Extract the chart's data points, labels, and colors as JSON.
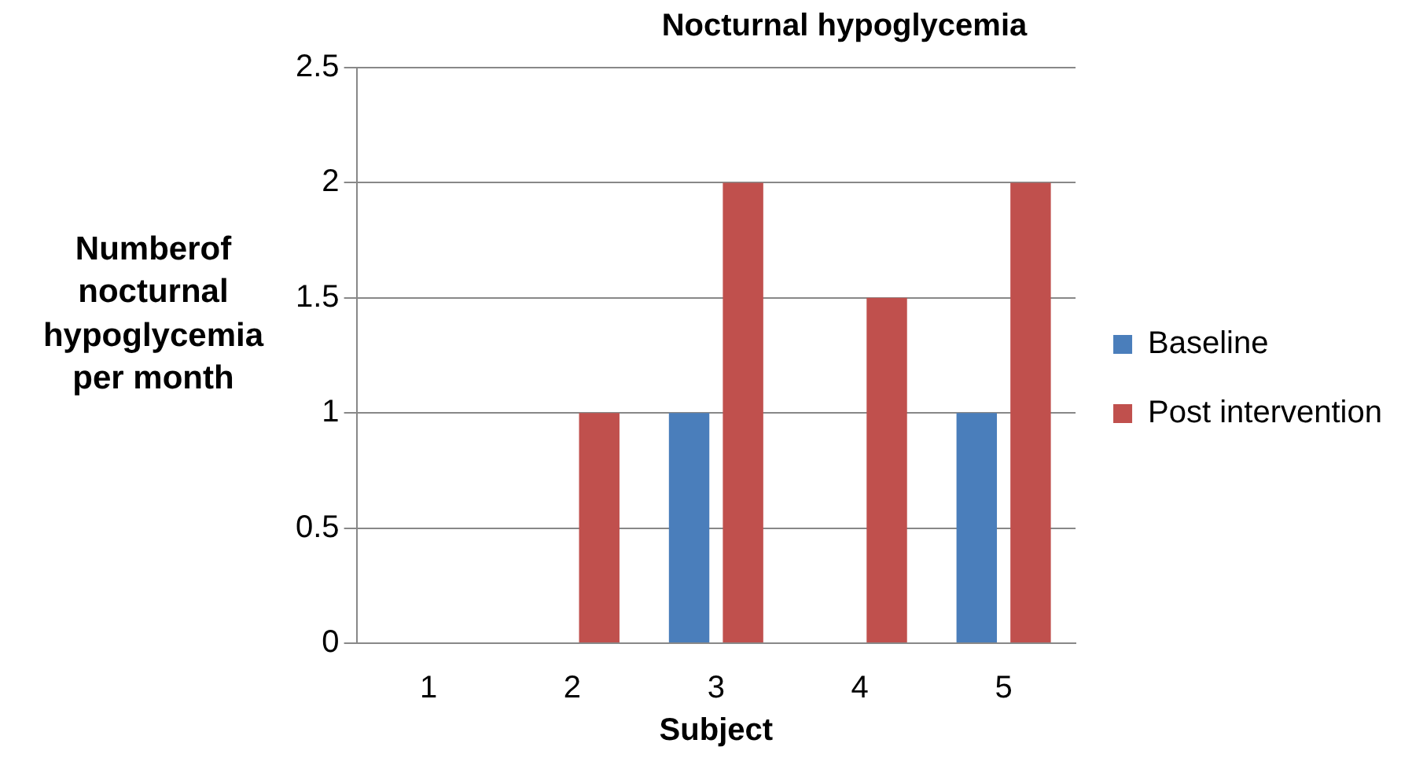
{
  "chart_data": {
    "type": "bar",
    "title": "Nocturnal hypoglycemia",
    "xlabel": "Subject",
    "ylabel": "Numberof nocturnal hypoglycemia per month",
    "categories": [
      "1",
      "2",
      "3",
      "4",
      "5"
    ],
    "series": [
      {
        "name": "Baseline",
        "color": "#4a7ebb",
        "values": [
          0,
          0,
          1,
          0,
          1
        ]
      },
      {
        "name": "Post intervention",
        "color": "#c0504d",
        "values": [
          0,
          1,
          2,
          1.5,
          2
        ]
      }
    ],
    "ylim": [
      0,
      2.5
    ],
    "yticks": [
      0,
      0.5,
      1,
      1.5,
      2,
      2.5
    ],
    "grid": "y",
    "legend": "right"
  }
}
